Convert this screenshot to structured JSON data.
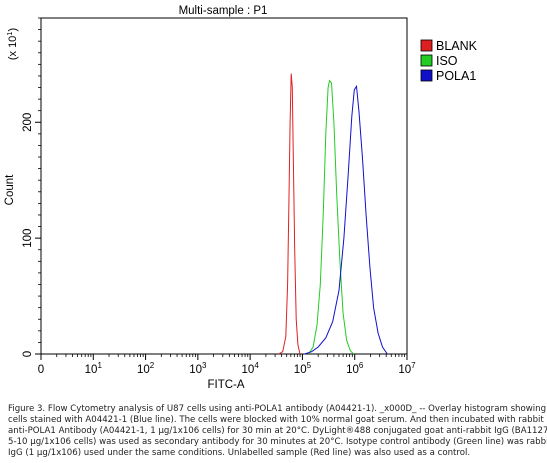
{
  "chart_data": {
    "type": "histogram",
    "title": "Multi-sample : P1",
    "xlabel": "FITC-A",
    "ylabel": "Count",
    "y_multiplier": "(x 10",
    "y_multiplier_exp": "1",
    "y_multiplier_close": ")",
    "x_scale": "log",
    "xlim": [
      1,
      10000000
    ],
    "ylim": [
      0,
      290
    ],
    "x_ticks": [
      {
        "base": "0",
        "exp": "",
        "value": 1
      },
      {
        "base": "10",
        "exp": "1",
        "value": 10
      },
      {
        "base": "10",
        "exp": "2",
        "value": 100
      },
      {
        "base": "10",
        "exp": "3",
        "value": 1000
      },
      {
        "base": "10",
        "exp": "4",
        "value": 10000
      },
      {
        "base": "10",
        "exp": "5",
        "value": 100000
      },
      {
        "base": "10",
        "exp": "6",
        "value": 1000000
      },
      {
        "base": "10",
        "exp": "7",
        "value": 10000000
      }
    ],
    "y_ticks": [
      {
        "label": "0",
        "value": 0
      },
      {
        "label": "100",
        "value": 100
      },
      {
        "label": "200",
        "value": 200
      }
    ],
    "legend_position": "top-right",
    "series": [
      {
        "name": "BLANK",
        "color": "#e02020",
        "peak_x": 60000,
        "peak_y": 242,
        "points": [
          [
            35000,
            0
          ],
          [
            42000,
            2
          ],
          [
            48000,
            15
          ],
          [
            52000,
            60
          ],
          [
            55000,
            130
          ],
          [
            58000,
            200
          ],
          [
            61000,
            242
          ],
          [
            64000,
            230
          ],
          [
            67000,
            170
          ],
          [
            71000,
            90
          ],
          [
            76000,
            30
          ],
          [
            82000,
            8
          ],
          [
            90000,
            0
          ]
        ]
      },
      {
        "name": "ISO",
        "color": "#22cc22",
        "peak_x": 330000,
        "peak_y": 236,
        "points": [
          [
            130000,
            0
          ],
          [
            160000,
            6
          ],
          [
            190000,
            25
          ],
          [
            220000,
            60
          ],
          [
            250000,
            120
          ],
          [
            280000,
            190
          ],
          [
            310000,
            230
          ],
          [
            330000,
            236
          ],
          [
            360000,
            234
          ],
          [
            400000,
            200
          ],
          [
            450000,
            140
          ],
          [
            520000,
            80
          ],
          [
            600000,
            35
          ],
          [
            700000,
            12
          ],
          [
            820000,
            3
          ],
          [
            950000,
            0
          ]
        ]
      },
      {
        "name": "POLA1",
        "color": "#1010cc",
        "peak_x": 1050000,
        "peak_y": 231,
        "points": [
          [
            110000,
            0
          ],
          [
            150000,
            2
          ],
          [
            200000,
            6
          ],
          [
            280000,
            14
          ],
          [
            380000,
            28
          ],
          [
            500000,
            55
          ],
          [
            620000,
            100
          ],
          [
            750000,
            155
          ],
          [
            880000,
            205
          ],
          [
            980000,
            228
          ],
          [
            1080000,
            231
          ],
          [
            1200000,
            210
          ],
          [
            1400000,
            170
          ],
          [
            1650000,
            120
          ],
          [
            1950000,
            75
          ],
          [
            2300000,
            40
          ],
          [
            2800000,
            18
          ],
          [
            3400000,
            6
          ],
          [
            4200000,
            0
          ]
        ]
      }
    ]
  },
  "caption": [
    "Figure 3. Flow Cytometry analysis of U87 cells using anti-POLA1 antibody (A04421-1). _x000D_ -- Overlay histogram showing U87",
    "cells stained with A04421-1 (Blue line). The cells were blocked with 10% normal goat serum. And then incubated with rabbit",
    "anti-POLA1 Antibody (A04421-1, 1 μg/1x106 cells) for 30 min at 20°C. DyLight®488 conjugated goat anti-rabbit IgG (BA1127,",
    "5-10 μg/1x106 cells) was used as secondary antibody for 30 minutes at 20°C. Isotype control antibody (Green line) was rabbit",
    "IgG (1 μg/1x106) used under the same conditions. Unlabelled sample (Red line) was also used as a control."
  ]
}
